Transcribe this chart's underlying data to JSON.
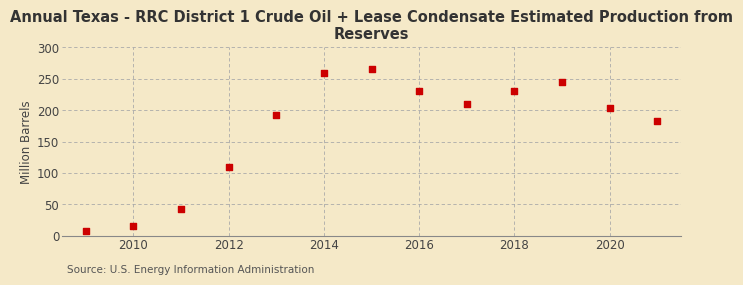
{
  "title": "Annual Texas - RRC District 1 Crude Oil + Lease Condensate Estimated Production from\nReserves",
  "ylabel": "Million Barrels",
  "source": "Source: U.S. Energy Information Administration",
  "background_color": "#f5e9c8",
  "plot_bg_color": "#f5e9c8",
  "years": [
    2009,
    2010,
    2011,
    2012,
    2013,
    2014,
    2015,
    2016,
    2017,
    2018,
    2019,
    2020,
    2021
  ],
  "values": [
    7,
    15,
    42,
    110,
    193,
    260,
    265,
    230,
    210,
    230,
    245,
    203,
    183
  ],
  "marker_color": "#cc0000",
  "ylim": [
    0,
    300
  ],
  "yticks": [
    0,
    50,
    100,
    150,
    200,
    250,
    300
  ],
  "xticks": [
    2010,
    2012,
    2014,
    2016,
    2018,
    2020
  ],
  "xlim": [
    2008.5,
    2021.5
  ],
  "title_fontsize": 10.5,
  "label_fontsize": 8.5,
  "source_fontsize": 7.5,
  "grid_color": "#aaaaaa",
  "tick_color": "#444444",
  "spine_color": "#888888"
}
